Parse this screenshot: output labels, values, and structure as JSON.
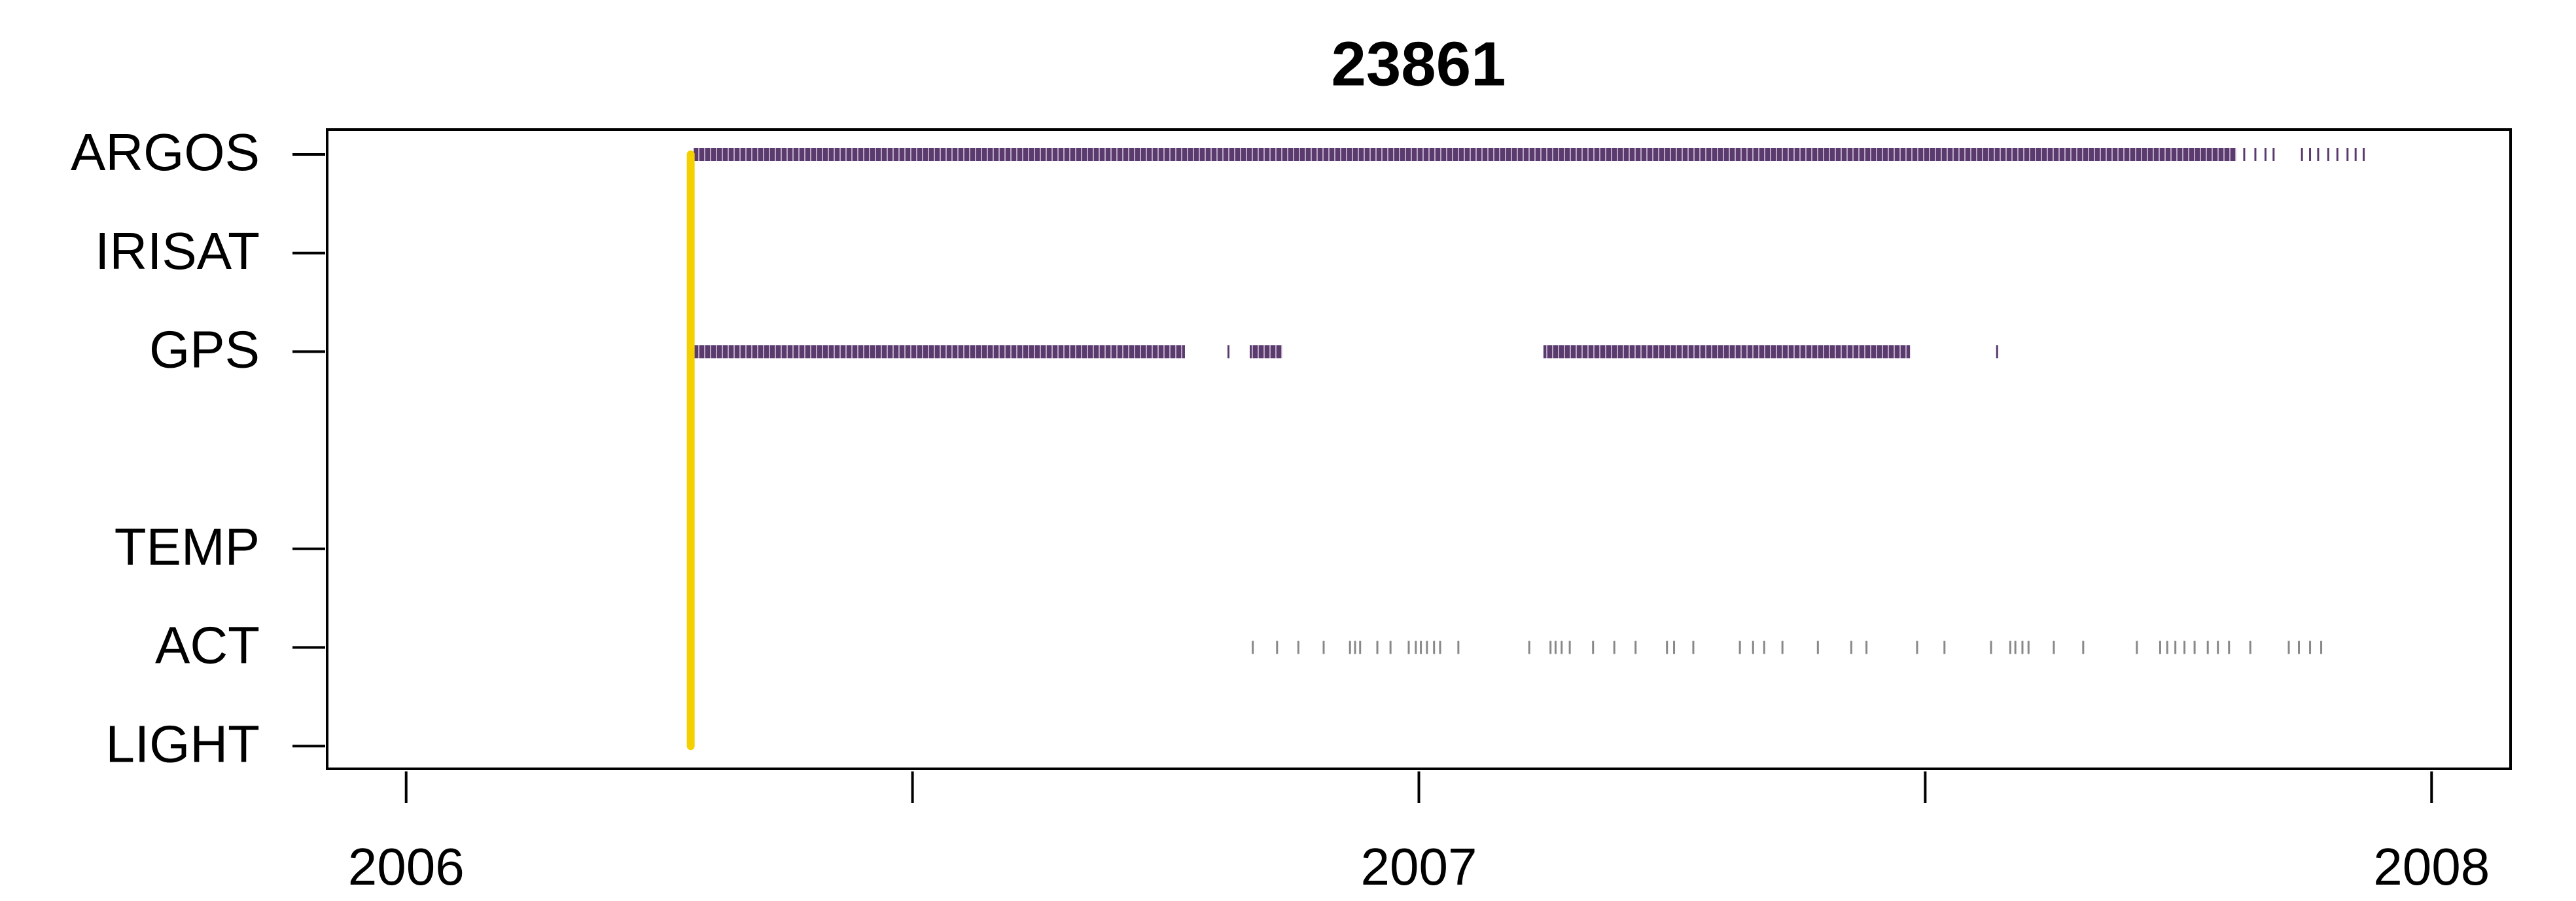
{
  "chart_data": {
    "type": "timeline",
    "title": "23861",
    "xlim": [
      2005.922,
      2008.078
    ],
    "xticks": [
      2006,
      {
        "value": 2006.5,
        "label": null
      },
      2007,
      {
        "value": 2007.5,
        "label": null
      },
      2008
    ],
    "markers": [
      {
        "x": 2006.281,
        "color": "#f5d000"
      }
    ],
    "series": [
      {
        "name": "ARGOS",
        "color": "#5b3a6e",
        "ranges": [
          [
            2006.284,
            2007.807
          ]
        ],
        "x": [
          2007.815,
          2007.826,
          2007.836,
          2007.844,
          2007.872,
          2007.88,
          2007.888,
          2007.898,
          2007.907,
          2007.917,
          2007.925,
          2007.933
        ]
      },
      {
        "name": "IRISAT"
      },
      {
        "name": "GPS",
        "color": "#5b3a6e",
        "ranges": [
          [
            2006.284,
            2006.769
          ],
          [
            2006.833,
            2006.865
          ],
          [
            2007.123,
            2007.485
          ]
        ],
        "x": [
          2006.812,
          2007.571
        ]
      },
      {
        "name": null
      },
      {
        "name": "TEMP"
      },
      {
        "name": "ACT",
        "color": "#888888",
        "x": [
          2006.836,
          2006.86,
          2006.881,
          2006.906,
          2006.932,
          2006.937,
          2006.942,
          2006.959,
          2006.972,
          2006.99,
          2006.997,
          2007.002,
          2007.008,
          2007.015,
          2007.021,
          2007.039,
          2007.109,
          2007.13,
          2007.135,
          2007.141,
          2007.149,
          2007.172,
          2007.193,
          2007.214,
          2007.245,
          2007.252,
          2007.271,
          2007.317,
          2007.33,
          2007.341,
          2007.359,
          2007.394,
          2007.427,
          2007.442,
          2007.492,
          2007.519,
          2007.565,
          2007.584,
          2007.589,
          2007.596,
          2007.602,
          2007.627,
          2007.656,
          2007.709,
          2007.732,
          2007.739,
          2007.747,
          2007.756,
          2007.766,
          2007.779,
          2007.789,
          2007.8,
          2007.821,
          2007.859,
          2007.869,
          2007.88,
          2007.891
        ]
      },
      {
        "name": "LIGHT"
      }
    ]
  }
}
